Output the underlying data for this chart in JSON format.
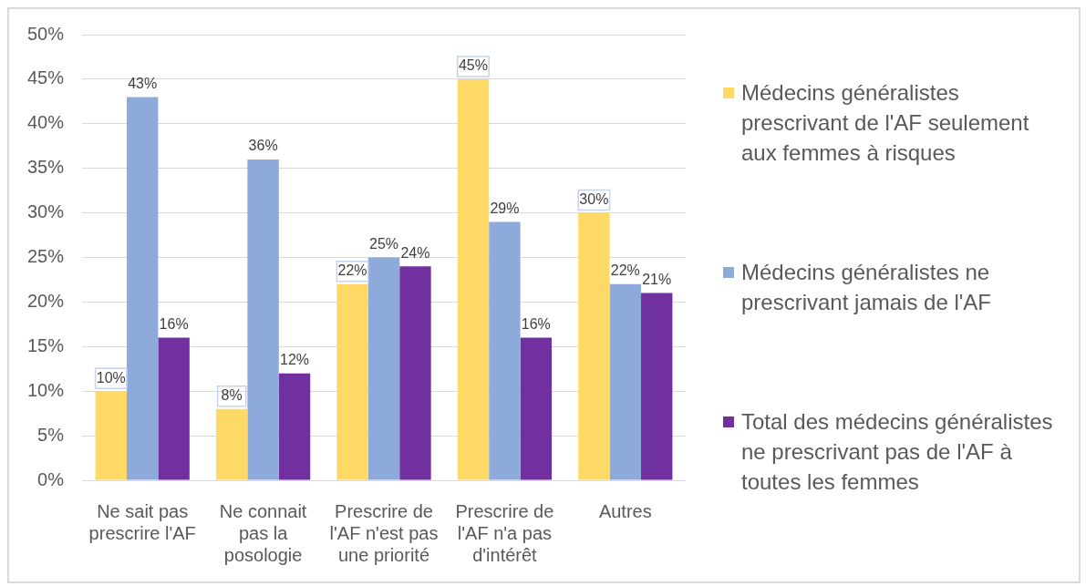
{
  "chart_data": {
    "type": "bar",
    "categories": [
      "Ne sait pas prescrire l'AF",
      "Ne connait pas la posologie",
      "Prescrire de l'AF n'est pas une priorité",
      "Prescrire de l'AF n'a pas d'intérêt",
      "Autres"
    ],
    "series": [
      {
        "name": "Médecins généralistes prescrivant de l'AF seulement aux femmes à risques",
        "color": "#ffd966",
        "values": [
          10,
          8,
          22,
          45,
          30
        ],
        "value_labels": [
          "10%",
          "8%",
          "22%",
          "45%",
          "30%"
        ]
      },
      {
        "name": "Médecins généralistes ne prescrivant jamais de l'AF",
        "color": "#8eaadb",
        "values": [
          43,
          36,
          25,
          29,
          22
        ],
        "value_labels": [
          "43%",
          "36%",
          "25%",
          "29%",
          "22%"
        ]
      },
      {
        "name": "Total des médecins généralistes ne prescrivant pas de l'AF à toutes les femmes",
        "color": "#7030a0",
        "values": [
          16,
          12,
          24,
          16,
          21
        ],
        "value_labels": [
          "16%",
          "12%",
          "24%",
          "16%",
          "21%"
        ]
      }
    ],
    "ylim": [
      0,
      50
    ],
    "yticks": [
      {
        "value": 0,
        "label": "0%"
      },
      {
        "value": 5,
        "label": "5%"
      },
      {
        "value": 10,
        "label": "10%"
      },
      {
        "value": 15,
        "label": "15%"
      },
      {
        "value": 20,
        "label": "20%"
      },
      {
        "value": 25,
        "label": "25%"
      },
      {
        "value": 30,
        "label": "30%"
      },
      {
        "value": 35,
        "label": "35%"
      },
      {
        "value": 40,
        "label": "40%"
      },
      {
        "value": 45,
        "label": "45%"
      },
      {
        "value": 50,
        "label": "50%"
      }
    ],
    "grid": "y",
    "legend": "right"
  }
}
